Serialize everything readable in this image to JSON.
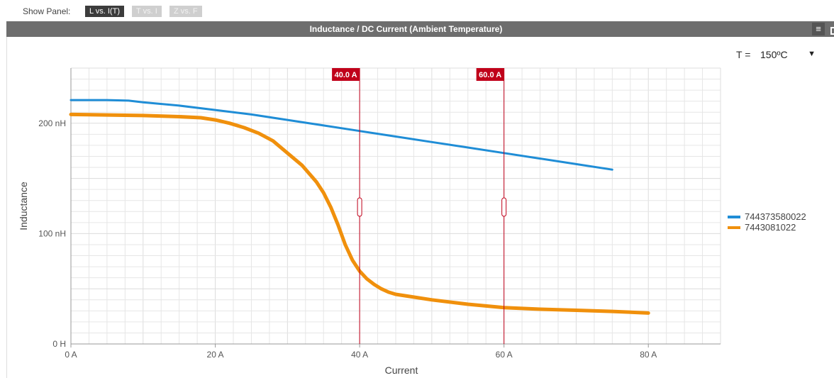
{
  "toolbar": {
    "show_panel_label": "Show Panel:",
    "buttons": [
      {
        "label": "L vs. I(T)",
        "active": true
      },
      {
        "label": "T vs. I",
        "active": false
      },
      {
        "label": "Z vs. F",
        "active": false
      }
    ]
  },
  "panel": {
    "title": "Inductance / DC Current (Ambient Temperature)",
    "menu_icon": "hamburger-menu-icon",
    "restore_icon": "window-restore-icon"
  },
  "temperature": {
    "label": "T =",
    "selected": "150ºC"
  },
  "colors": {
    "series1": "#1f8dd6",
    "series2": "#f0900c",
    "cursor": "#c0001a",
    "grid": "#e6e6e6"
  },
  "chart_data": {
    "type": "line",
    "xlabel": "Current",
    "ylabel": "Inductance",
    "xlim": [
      0,
      90
    ],
    "ylim": [
      0,
      250
    ],
    "x_ticks": [
      {
        "value": 0,
        "label": "0 A"
      },
      {
        "value": 20,
        "label": "20 A"
      },
      {
        "value": 40,
        "label": "40 A"
      },
      {
        "value": 60,
        "label": "60 A"
      },
      {
        "value": 80,
        "label": "80 A"
      }
    ],
    "y_ticks": [
      {
        "value": 0,
        "label": "0 H"
      },
      {
        "value": 100,
        "label": "100 nH"
      },
      {
        "value": 200,
        "label": "200 nH"
      }
    ],
    "cursors": [
      {
        "value": 40,
        "label": "40.0 A"
      },
      {
        "value": 60,
        "label": "60.0 A"
      }
    ],
    "legend_position": "right",
    "grid": true,
    "series": [
      {
        "name": "744373580022",
        "x": [
          0,
          5,
          8,
          10,
          15,
          20,
          25,
          30,
          35,
          40,
          45,
          50,
          55,
          60,
          65,
          70,
          75
        ],
        "y": [
          221,
          221,
          220.5,
          219,
          216,
          212,
          208,
          203,
          198,
          193,
          188,
          183,
          178,
          173,
          168,
          163,
          158
        ]
      },
      {
        "name": "7443081022",
        "x": [
          0,
          5,
          10,
          15,
          18,
          20,
          22,
          24,
          26,
          28,
          30,
          32,
          34,
          35,
          36,
          37,
          38,
          39,
          40,
          41,
          42,
          43,
          44,
          45,
          47,
          50,
          55,
          60,
          65,
          70,
          75,
          80
        ],
        "y": [
          208,
          207.5,
          207,
          206,
          205,
          203,
          200,
          196,
          191,
          184,
          173,
          162,
          147,
          137,
          124,
          108,
          90,
          76,
          66,
          59,
          54,
          50,
          47,
          45,
          43,
          40,
          36,
          33,
          31.5,
          30.5,
          29.5,
          28
        ]
      }
    ]
  }
}
